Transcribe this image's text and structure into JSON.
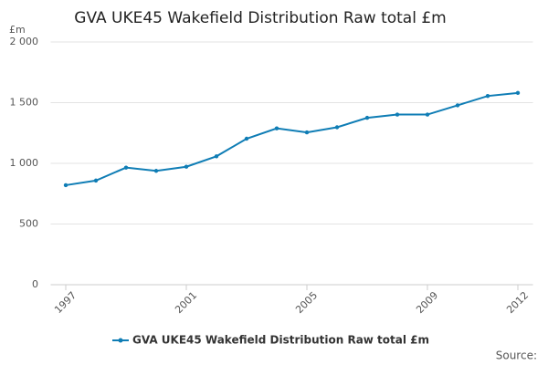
{
  "chart_data": {
    "type": "line",
    "title": "GVA UKE45 Wakefield Distribution Raw total £m",
    "y_unit": "£m",
    "source": "Source:",
    "x": [
      1997,
      1998,
      1999,
      2000,
      2001,
      2002,
      2003,
      2004,
      2005,
      2006,
      2007,
      2008,
      2009,
      2010,
      2011,
      2012
    ],
    "series": [
      {
        "name": "GVA UKE45 Wakefield Distribution Raw total £m",
        "color": "#0f7db5",
        "values": [
          820,
          858,
          965,
          938,
          972,
          1058,
          1203,
          1288,
          1255,
          1297,
          1375,
          1402,
          1402,
          1478,
          1555,
          1580
        ]
      }
    ],
    "xlim": [
      1996.5,
      2012.5
    ],
    "xticks": [
      1997,
      2001,
      2005,
      2009,
      2012
    ],
    "ylim": [
      0,
      2000
    ],
    "yticks": [
      0,
      500,
      {
        "value": 1000,
        "label": "1 000"
      },
      {
        "value": 1500,
        "label": "1 500"
      },
      {
        "value": 2000,
        "label": "2 000"
      }
    ],
    "grid": true
  }
}
